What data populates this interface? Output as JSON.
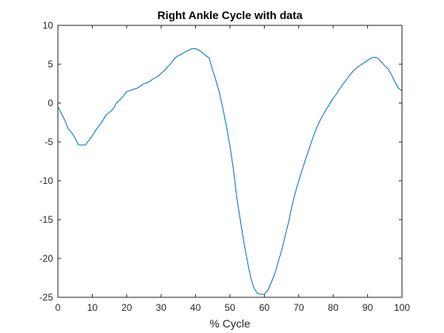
{
  "chart_data": {
    "type": "line",
    "title": "Right Ankle Cycle with data",
    "xlabel": "% Cycle",
    "ylabel": "",
    "xlim": [
      0,
      100
    ],
    "ylim": [
      -25,
      10
    ],
    "xticks": [
      0,
      10,
      20,
      30,
      40,
      50,
      60,
      70,
      80,
      90,
      100
    ],
    "yticks": [
      10,
      5,
      0,
      -5,
      -10,
      -15,
      -20,
      -25
    ],
    "grid": false,
    "line_color": "#0072bd",
    "series": [
      {
        "x": [
          0,
          1,
          2,
          3,
          4,
          5,
          6,
          7,
          8,
          9,
          10,
          11,
          12,
          13,
          14,
          15,
          16,
          17,
          18,
          19,
          20,
          21,
          22,
          23,
          24,
          25,
          26,
          27,
          28,
          29,
          30,
          31,
          32,
          33,
          34,
          35,
          36,
          37,
          38,
          39,
          40,
          41,
          42,
          43,
          44,
          45,
          46,
          47,
          48,
          49,
          50,
          51,
          52,
          53,
          54,
          55,
          56,
          57,
          58,
          59,
          60,
          61,
          62,
          63,
          64,
          65,
          66,
          67,
          68,
          69,
          70,
          71,
          72,
          73,
          74,
          75,
          76,
          77,
          78,
          79,
          80,
          81,
          82,
          83,
          84,
          85,
          86,
          87,
          88,
          89,
          90,
          91,
          92,
          93,
          94,
          95,
          96,
          97,
          98,
          99,
          100
        ],
        "values": [
          -0.5,
          -1.3,
          -2.2,
          -3.3,
          -3.8,
          -4.5,
          -5.4,
          -5.4,
          -5.4,
          -4.8,
          -4.2,
          -3.5,
          -2.9,
          -2.3,
          -1.5,
          -1.2,
          -0.8,
          0.0,
          0.4,
          0.9,
          1.5,
          1.6,
          1.8,
          1.9,
          2.2,
          2.5,
          2.6,
          2.9,
          3.2,
          3.4,
          3.8,
          4.2,
          4.7,
          5.2,
          5.8,
          6.1,
          6.3,
          6.6,
          6.8,
          7.0,
          7.0,
          6.8,
          6.5,
          6.1,
          5.8,
          4.2,
          2.8,
          1.2,
          -0.8,
          -3.0,
          -5.5,
          -8.5,
          -12.2,
          -15.0,
          -17.8,
          -20.2,
          -22.4,
          -23.8,
          -24.5,
          -24.6,
          -24.6,
          -24.1,
          -23.1,
          -22.0,
          -20.5,
          -19.0,
          -17.2,
          -15.4,
          -13.3,
          -11.5,
          -10.0,
          -8.6,
          -7.2,
          -5.9,
          -4.6,
          -3.4,
          -2.4,
          -1.6,
          -0.8,
          -0.1,
          0.6,
          1.2,
          1.9,
          2.5,
          3.1,
          3.7,
          4.2,
          4.6,
          4.9,
          5.2,
          5.5,
          5.8,
          5.9,
          5.8,
          5.3,
          4.8,
          4.4,
          3.6,
          2.7,
          1.9,
          1.6
        ]
      }
    ]
  }
}
